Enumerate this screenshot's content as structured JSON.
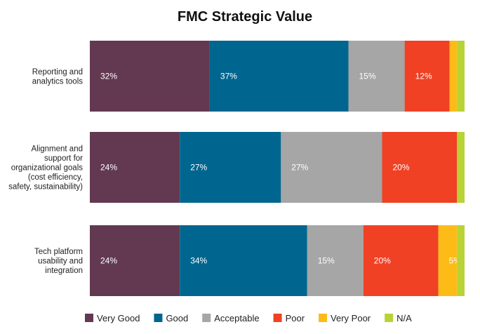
{
  "chart_data": {
    "type": "bar",
    "orientation": "horizontal",
    "stacked": true,
    "title": "FMC Strategic Value",
    "xlabel": "",
    "ylabel": "",
    "xlim": [
      0,
      100
    ],
    "grid": false,
    "legend_position": "bottom",
    "categories": [
      [
        "Reporting and",
        "analytics tools"
      ],
      [
        "Alignment and",
        "support for",
        "organizational goals",
        "(cost efficiency,",
        "safety, sustainability)"
      ],
      [
        "Tech platform",
        "usability and",
        "integration"
      ]
    ],
    "series": [
      {
        "name": "Very Good",
        "color": "#633952",
        "values": [
          32,
          24,
          24
        ],
        "labels": [
          "32%",
          "24%",
          "24%"
        ]
      },
      {
        "name": "Good",
        "color": "#01668f",
        "values": [
          37,
          27,
          34
        ],
        "labels": [
          "37%",
          "27%",
          "34%"
        ]
      },
      {
        "name": "Acceptable",
        "color": "#a6a6a6",
        "values": [
          15,
          27,
          15
        ],
        "labels": [
          "15%",
          "27%",
          "15%"
        ]
      },
      {
        "name": "Poor",
        "color": "#f04124",
        "values": [
          12,
          20,
          20
        ],
        "labels": [
          "12%",
          "20%",
          "20%"
        ]
      },
      {
        "name": "Very Poor",
        "color": "#fdbb18",
        "values": [
          2,
          0,
          5
        ],
        "labels": [
          "2%",
          "",
          "5%"
        ]
      },
      {
        "name": "N/A",
        "color": "#b7d336",
        "values": [
          2,
          2,
          2
        ],
        "labels": [
          "2%",
          "2%",
          "2%"
        ]
      }
    ]
  }
}
